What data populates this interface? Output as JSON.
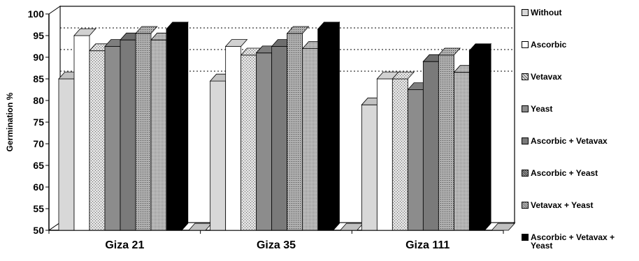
{
  "chart_data": {
    "type": "bar",
    "title": "",
    "xlabel": "",
    "ylabel": "Germination %",
    "ylim": [
      50,
      100
    ],
    "yticks": [
      50,
      55,
      60,
      65,
      70,
      75,
      80,
      85,
      90,
      95,
      100
    ],
    "grid": "dotted horizontal at 85, 90, 95",
    "legend_position": "right",
    "categories": [
      "Giza 21",
      "Giza 35",
      "Giza 111"
    ],
    "series": [
      {
        "name": "Without",
        "values": [
          85,
          84.5,
          79
        ],
        "color": "#d8d8d8",
        "pattern": "solid"
      },
      {
        "name": "Ascorbic",
        "values": [
          95,
          92.5,
          85
        ],
        "color": "#ffffff",
        "pattern": "solid"
      },
      {
        "name": "Vetavax",
        "values": [
          91.5,
          90.5,
          85
        ],
        "color": "#a0a0a0",
        "pattern": "dots"
      },
      {
        "name": "Yeast",
        "values": [
          92.5,
          91,
          82.5
        ],
        "color": "#8c8c8c",
        "pattern": "solid"
      },
      {
        "name": "Ascorbic + Vetavax",
        "values": [
          94,
          92.5,
          89
        ],
        "color": "#7a7a7a",
        "pattern": "solid"
      },
      {
        "name": "Ascorbic + Yeast",
        "values": [
          95.5,
          95.5,
          90.5
        ],
        "color": "#a8a8a8",
        "pattern": "fine-dots"
      },
      {
        "name": "Vetavax + Yeast",
        "values": [
          94,
          92,
          86.5
        ],
        "color": "#9a9a9a",
        "pattern": "dense-dots"
      },
      {
        "name": "Ascorbic + Vetavax + Yeast",
        "values": [
          96.5,
          96.5,
          91.5
        ],
        "color": "#000000",
        "pattern": "solid"
      }
    ]
  }
}
